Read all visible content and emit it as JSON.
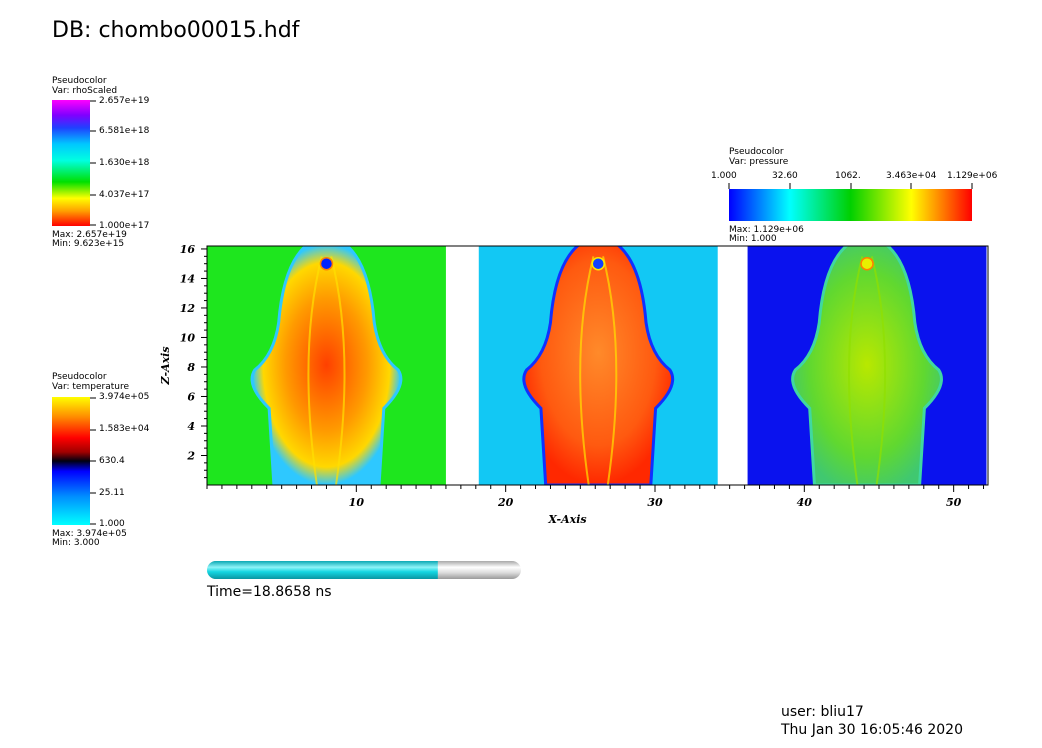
{
  "header": {
    "db_title": "DB: chombo00015.hdf"
  },
  "legends": {
    "rho": {
      "plot": "Pseudocolor",
      "var": "Var: rhoScaled",
      "ticks": [
        "2.657e+19",
        "6.581e+18",
        "1.630e+18",
        "4.037e+17",
        "1.000e+17"
      ],
      "max": "Max:  2.657e+19",
      "min": "Min:  9.623e+15"
    },
    "temperature": {
      "plot": "Pseudocolor",
      "var": "Var: temperature",
      "ticks": [
        "3.974e+05",
        "1.583e+04",
        "630.4",
        "25.11",
        "1.000"
      ],
      "max": "Max:  3.974e+05",
      "min": "Min:  3.000"
    },
    "pressure": {
      "plot": "Pseudocolor",
      "var": "Var: pressure",
      "ticks": [
        "1.000",
        "32.60",
        "1062.",
        "3.463e+04",
        "1.129e+06"
      ],
      "max": "Max:  1.129e+06",
      "min": "Min:  1.000"
    }
  },
  "chart_data": {
    "type": "heatmap",
    "xlabel": "X-Axis",
    "ylabel": "Z-Axis",
    "xlim": [
      0,
      52.3
    ],
    "ylim": [
      0,
      16.2
    ],
    "x_ticks": [
      10,
      20,
      30,
      40,
      50
    ],
    "y_ticks": [
      2,
      4,
      6,
      8,
      10,
      12,
      14,
      16
    ],
    "panels": [
      {
        "variable": "rhoScaled",
        "x_range": [
          0,
          16
        ],
        "background": "#1ee61e"
      },
      {
        "variable": "temperature",
        "x_range": [
          18.2,
          34.2
        ],
        "background": "#12c8f4"
      },
      {
        "variable": "pressure",
        "x_range": [
          36.2,
          52.2
        ],
        "background": "#0a12ee"
      }
    ]
  },
  "progress": {
    "fraction": 0.735
  },
  "time": {
    "label": "Time=18.8658 ns"
  },
  "footer": {
    "user": "user: bliu17",
    "date": "Thu Jan 30 16:05:46 2020"
  },
  "icons": {
    "time-slider": "cylinder-progress-bar"
  }
}
